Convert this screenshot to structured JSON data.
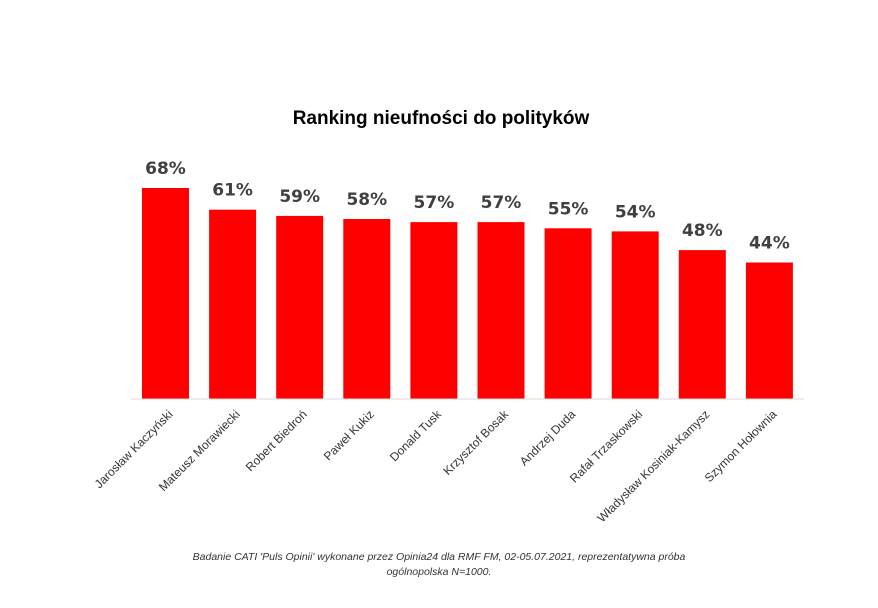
{
  "chart_data": {
    "type": "bar",
    "title": "Ranking nieufności do polityków",
    "categories": [
      "Jarosław Kaczyński",
      "Mateusz Morawiecki",
      "Robert Biedroń",
      "Paweł Kukiz",
      "Donald Tusk",
      "Krzysztof Bosak",
      "Andrzej Duda",
      "Rafał Trzaskowski",
      "Władysław Kosiniak-Kamysz",
      "Szymon Hołownia"
    ],
    "values": [
      68,
      61,
      59,
      58,
      57,
      57,
      55,
      54,
      48,
      44
    ],
    "value_labels": [
      "68%",
      "61%",
      "59%",
      "58%",
      "57%",
      "57%",
      "55%",
      "54%",
      "48%",
      "44%"
    ],
    "unit": "%",
    "xlabel": "",
    "ylabel": "",
    "ylim": [
      0,
      68
    ],
    "grid": false,
    "legend": "none",
    "bar_color": "#ff0000"
  },
  "footnote": {
    "line1": "Badanie CATI 'Puls Opinii' wykonane przez Opinia24 dla RMF FM, 02-05.07.2021, reprezentatywna próba",
    "line2": "ogólnopolska N=1000."
  }
}
